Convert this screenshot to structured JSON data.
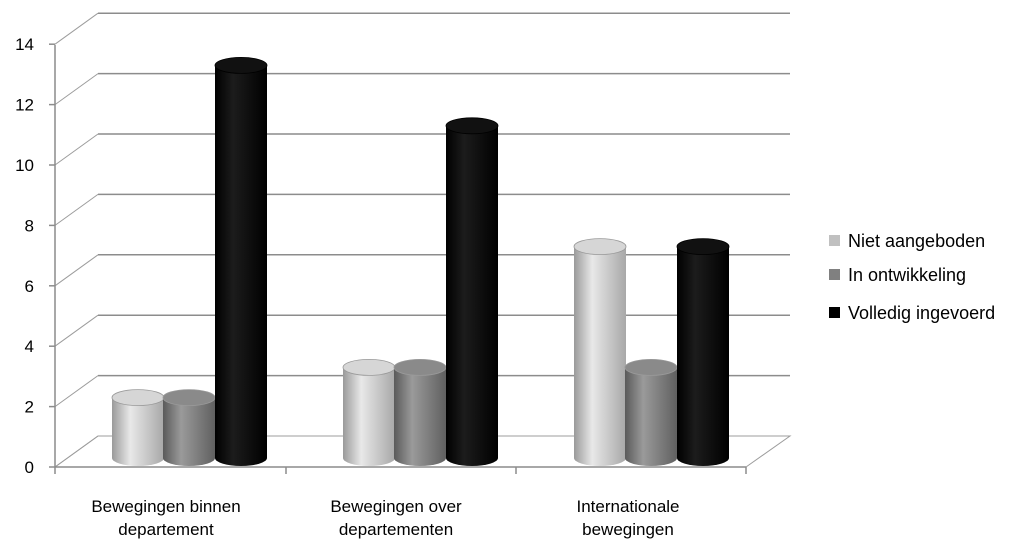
{
  "chart_data": {
    "type": "bar",
    "style": "3d-cylinder",
    "categories": [
      [
        "Bewegingen binnen",
        "departement"
      ],
      [
        "Bewegingen over",
        "departementen"
      ],
      [
        "Internationale",
        "bewegingen"
      ]
    ],
    "series": [
      {
        "name": "Niet aangeboden",
        "values": [
          2,
          3,
          7
        ],
        "color": "#c0c0c0"
      },
      {
        "name": "In ontwikkeling",
        "values": [
          2,
          3,
          3
        ],
        "color": "#808080"
      },
      {
        "name": "Volledig ingevoerd",
        "values": [
          13,
          11,
          7
        ],
        "color": "#000000"
      }
    ],
    "y_ticks": [
      "0",
      "2",
      "4",
      "6",
      "8",
      "10",
      "12",
      "14"
    ],
    "ylim": [
      0,
      14
    ],
    "grid": true,
    "legend_position": "right"
  }
}
